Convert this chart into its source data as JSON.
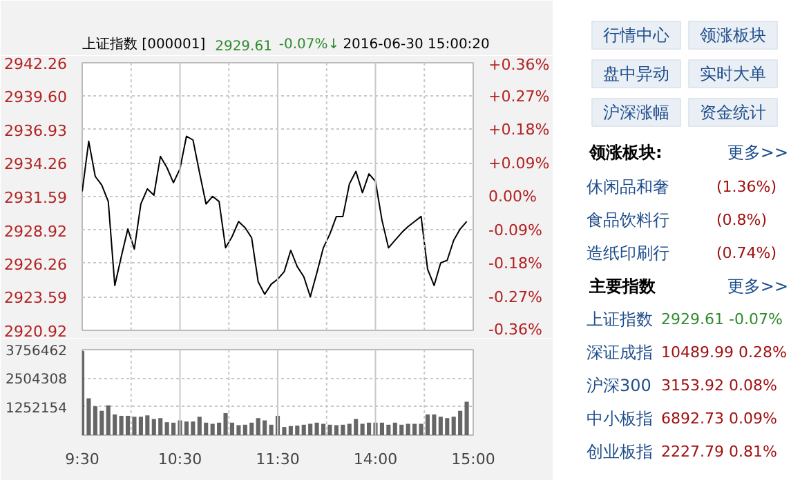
{
  "chart_data": [
    {
      "type": "line",
      "title": "上证指数 [000001]",
      "annotations": [
        "2929.61",
        "-0.07%↓",
        "2016-06-30 15:00:20"
      ],
      "categories": [
        null,
        null,
        null,
        null,
        null,
        null,
        null,
        null,
        null,
        null,
        null,
        null,
        null,
        null,
        null,
        null,
        null,
        null,
        null,
        null,
        null,
        null,
        null,
        null,
        null,
        null,
        null,
        null,
        null,
        null,
        null,
        null,
        null,
        null,
        null,
        null,
        null,
        null,
        null,
        null,
        null,
        null,
        null,
        null,
        null,
        null,
        null,
        null,
        null,
        null,
        null,
        null,
        null,
        null,
        null,
        null,
        null,
        null,
        null,
        null,
        null
      ],
      "series": [
        {
          "color": "#000000",
          "values": [
            2932.0,
            2936.0,
            2933.2,
            2932.5,
            2931.2,
            2924.5,
            2926.8,
            2929.0,
            2927.4,
            2931.0,
            2932.2,
            2931.7,
            2934.8,
            2933.9,
            2932.7,
            2933.8,
            2936.4,
            2936.1,
            2933.5,
            2931.0,
            2931.6,
            2931.2,
            2927.5,
            2928.4,
            2929.6,
            2929.1,
            2928.3,
            2924.8,
            2923.8,
            2924.6,
            2925.0,
            2925.6,
            2927.3,
            2926.0,
            2925.2,
            2923.6,
            2925.5,
            2927.5,
            2928.6,
            2930.0,
            2930.0,
            2932.6,
            2933.6,
            2931.9,
            2933.4,
            2932.8,
            2929.7,
            2927.5,
            2928.1,
            2928.7,
            2929.2,
            2929.6,
            2930.0,
            2925.8,
            2924.5,
            2926.3,
            2926.5,
            2928.1,
            2929.0,
            2929.6,
            null
          ]
        }
      ],
      "ylim": [
        2920.92,
        2942.26
      ],
      "yticks": [
        2920.92,
        2923.59,
        2926.26,
        2928.92,
        2931.59,
        2934.26,
        2936.93,
        {
          "value": 2939.6,
          "label": "2939.60"
        },
        2942.26
      ],
      "y2lim": [
        -0.36,
        0.36
      ],
      "y2ticks": [
        {
          "value": -0.36,
          "label": "-0.36%"
        },
        {
          "value": -0.27,
          "label": "-0.27%"
        },
        {
          "value": -0.18,
          "label": "-0.18%"
        },
        {
          "value": -0.09,
          "label": "-0.09%"
        },
        {
          "value": 0,
          "label": "0.00%"
        },
        {
          "value": 0.09,
          "label": "+0.09%"
        },
        {
          "value": 0.18,
          "label": "+0.18%"
        },
        {
          "value": 0.27,
          "label": "+0.27%"
        },
        {
          "value": 0.36,
          "label": "+0.36%"
        }
      ],
      "grid": true,
      "tick_labels": "y"
    },
    {
      "type": "bar",
      "categories": [
        "9:30",
        null,
        null,
        null,
        null,
        null,
        null,
        null,
        null,
        null,
        null,
        null,
        null,
        null,
        null,
        "10:30",
        null,
        null,
        null,
        null,
        null,
        null,
        null,
        null,
        null,
        null,
        null,
        null,
        null,
        null,
        "11:30",
        null,
        null,
        null,
        null,
        null,
        null,
        null,
        null,
        null,
        null,
        null,
        null,
        null,
        null,
        "14:00",
        null,
        null,
        null,
        null,
        null,
        null,
        null,
        null,
        null,
        null,
        null,
        null,
        null,
        null,
        "15:00"
      ],
      "values": [
        3700000,
        1620000,
        1270000,
        1070000,
        1310000,
        910000,
        850000,
        850000,
        810000,
        810000,
        870000,
        710000,
        750000,
        570000,
        550000,
        650000,
        600000,
        600000,
        810000,
        550000,
        500000,
        550000,
        970000,
        550000,
        440000,
        460000,
        550000,
        750000,
        650000,
        460000,
        850000,
        360000,
        400000,
        420000,
        460000,
        500000,
        550000,
        500000,
        460000,
        440000,
        460000,
        500000,
        710000,
        500000,
        550000,
        550000,
        550000,
        460000,
        550000,
        460000,
        500000,
        500000,
        500000,
        910000,
        910000,
        810000,
        750000,
        810000,
        1070000,
        1470000,
        null
      ],
      "color": "#666666",
      "ylim": [
        0,
        3756462
      ],
      "yticks": [
        {
          "value": 1252154,
          "label": "1252154"
        },
        {
          "value": 2504308,
          "label": "2504308"
        },
        {
          "value": 3756462,
          "label": "3756462"
        }
      ],
      "grid": true
    },
    {
      "type": "other",
      "annotations": [
        "行情中心",
        "领涨板块",
        "盘中异动",
        "实时大单",
        "沪深涨幅",
        "资金统计",
        "领涨板块:",
        "更多>>",
        "休闲品和奢",
        "(1.36%)",
        "食品饮料行",
        "(0.8%)",
        "造纸印刷行",
        "(0.74%)",
        "主要指数",
        "更多>>",
        "上证指数",
        "2929.61 -0.07%",
        "深证成指",
        "10489.99 0.28%",
        "沪深300",
        "3153.92 0.08%",
        "中小板指",
        "6892.73 0.09%",
        "创业板指",
        "2227.79 0.81%"
      ]
    }
  ]
}
